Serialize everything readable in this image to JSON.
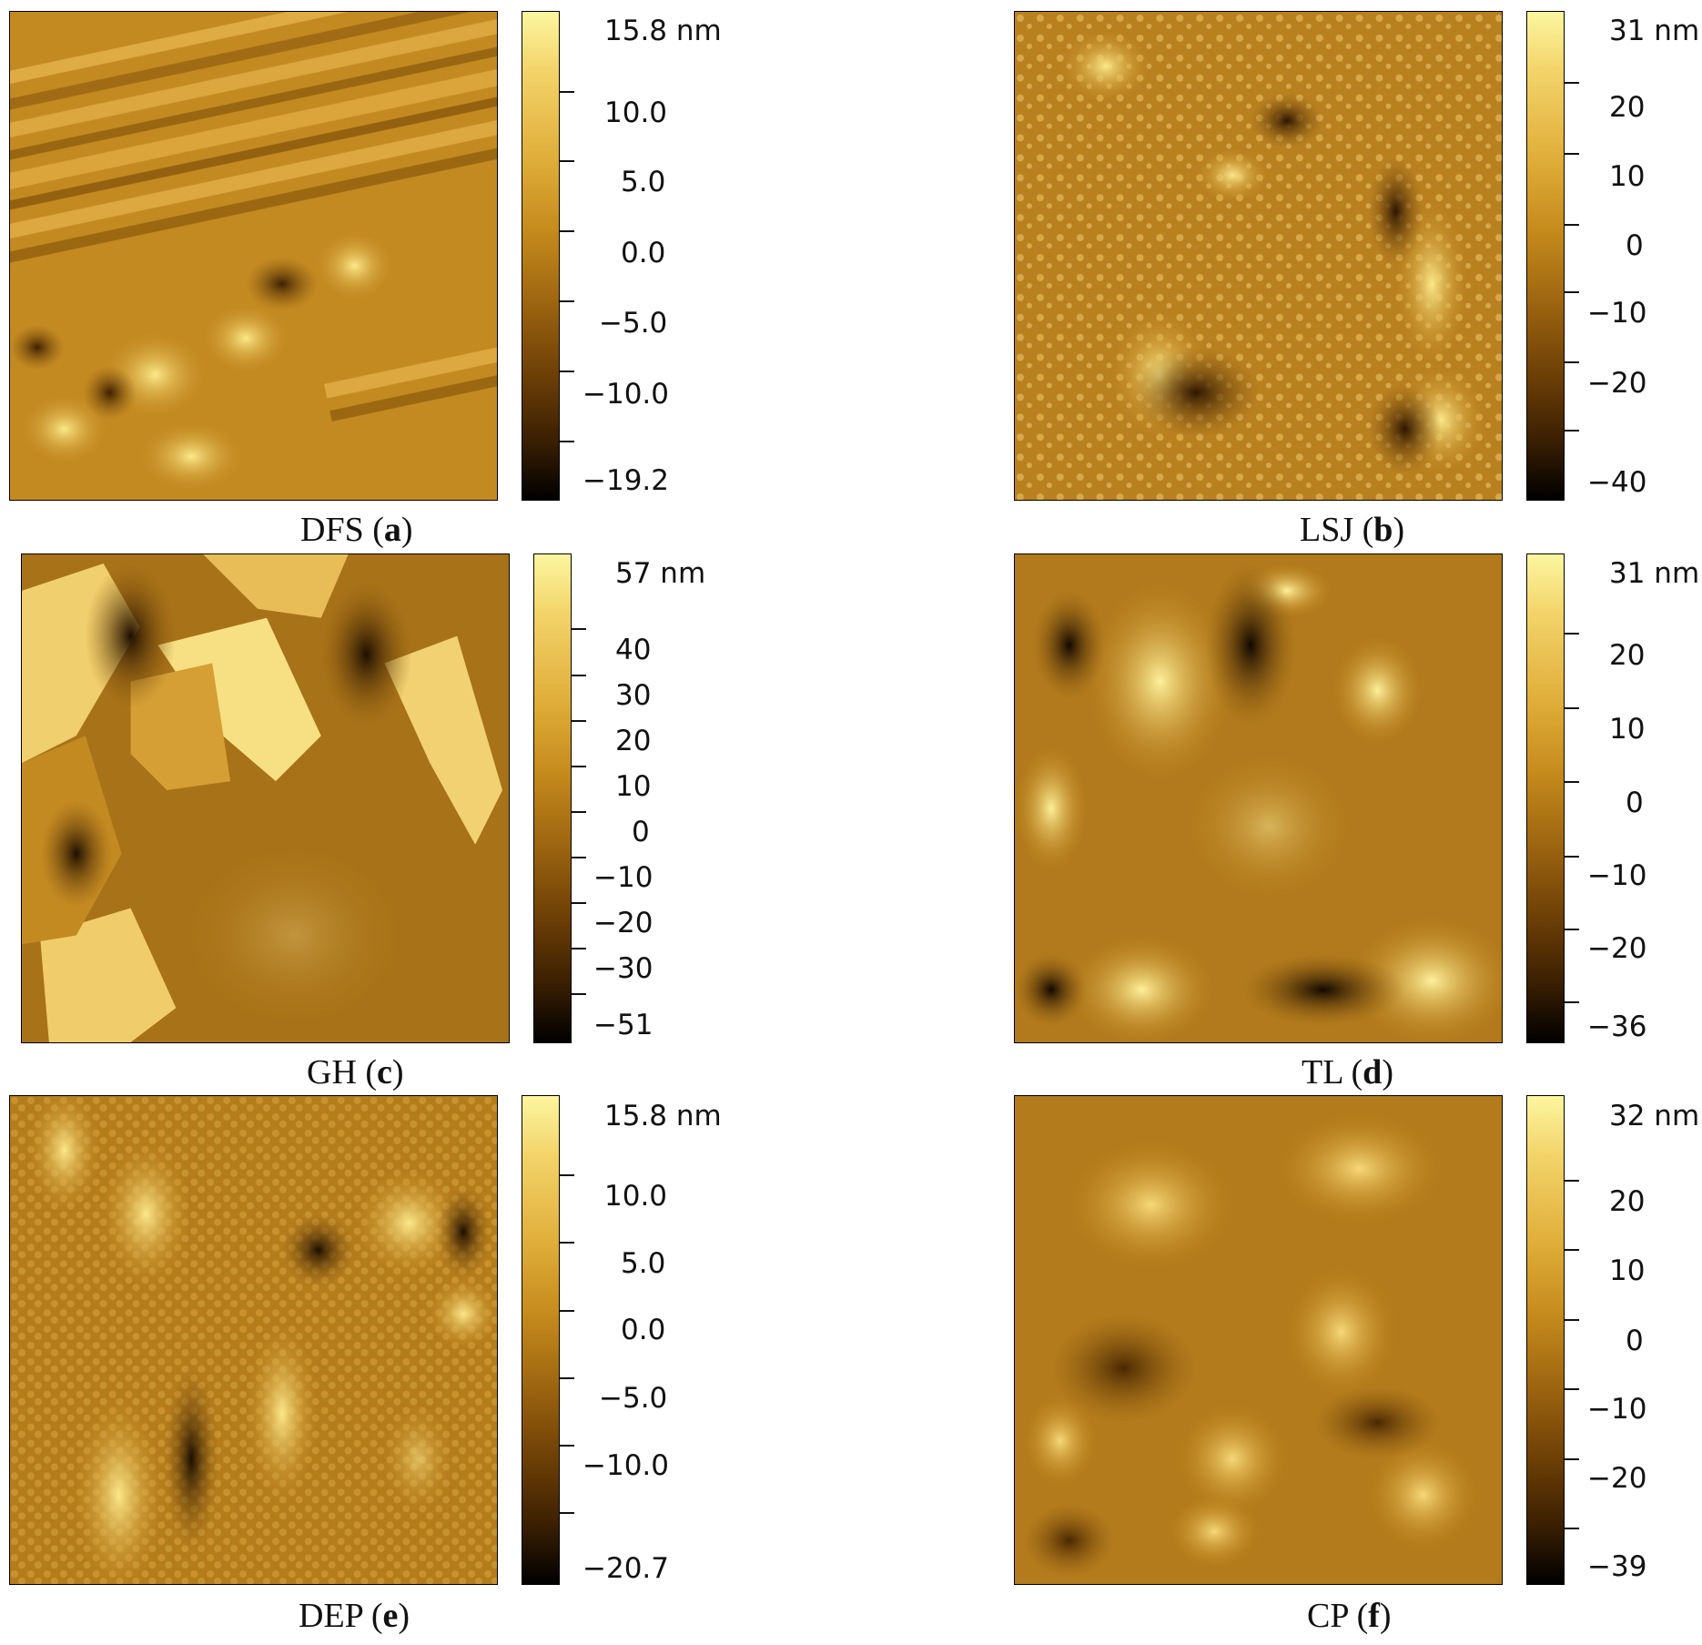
{
  "panels": [
    {
      "id": "a",
      "sample": "DFS",
      "colorbar": [
        "15.8 nm",
        "10.0",
        "5.0",
        "0.0",
        "−5.0",
        "−10.0",
        "−19.2"
      ],
      "pattern": "streaks"
    },
    {
      "id": "b",
      "sample": "LSJ",
      "colorbar": [
        "31 nm",
        "20",
        "10",
        "0",
        "−10",
        "−20",
        "−40"
      ],
      "pattern": "granular"
    },
    {
      "id": "c",
      "sample": "GH",
      "colorbar": [
        "57 nm",
        "40",
        "30",
        "20",
        "10",
        "0",
        "−10",
        "−20",
        "−30",
        "−51"
      ],
      "pattern": "blocks"
    },
    {
      "id": "d",
      "sample": "TL",
      "colorbar": [
        "31 nm",
        "20",
        "10",
        "0",
        "−10",
        "−20",
        "−36"
      ],
      "pattern": "blobs"
    },
    {
      "id": "e",
      "sample": "DEP",
      "colorbar": [
        "15.8 nm",
        "10.0",
        "5.0",
        "0.0",
        "−5.0",
        "−10.0",
        "−20.7"
      ],
      "pattern": "grainy"
    },
    {
      "id": "f",
      "sample": "CP",
      "colorbar": [
        "32 nm",
        "20",
        "10",
        "0",
        "−10",
        "−20",
        "−39"
      ],
      "pattern": "smooth"
    }
  ],
  "colors": {
    "high": "#fcf6a0",
    "mid": "#c58a1c",
    "low": "#000000"
  }
}
